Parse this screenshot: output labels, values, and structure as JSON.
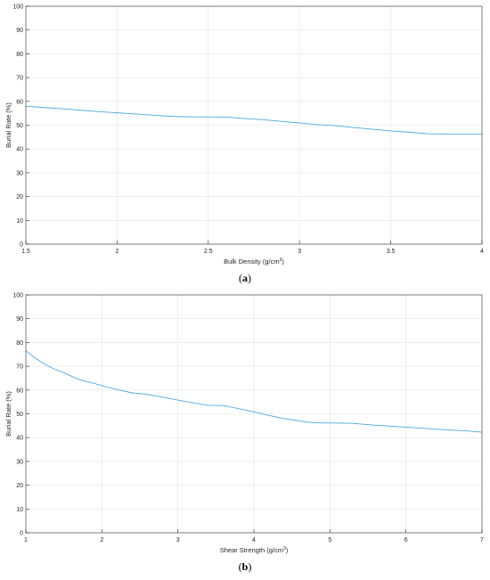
{
  "chart_data": [
    {
      "type": "line",
      "caption": "(a)",
      "caption_letter": "a",
      "title": "",
      "xlabel": "Bulk Density (g/cm",
      "xlabel_sup": "3",
      "xlabel_tail": ")",
      "ylabel": "Burial Rate (%)",
      "xlim": [
        1.5,
        4
      ],
      "ylim": [
        0,
        100
      ],
      "grid": true,
      "xticks": [
        {
          "v": 1.5,
          "label": "1.5"
        },
        {
          "v": 2,
          "label": "2"
        },
        {
          "v": 2.5,
          "label": "2.5"
        },
        {
          "v": 3,
          "label": "3"
        },
        {
          "v": 3.5,
          "label": "3.5"
        },
        {
          "v": 4,
          "label": "4"
        }
      ],
      "yticks": [
        {
          "v": 0,
          "label": "0"
        },
        {
          "v": 10,
          "label": "10"
        },
        {
          "v": 20,
          "label": "20"
        },
        {
          "v": 30,
          "label": "30"
        },
        {
          "v": 40,
          "label": "40"
        },
        {
          "v": 50,
          "label": "50"
        },
        {
          "v": 60,
          "label": "60"
        },
        {
          "v": 70,
          "label": "70"
        },
        {
          "v": 80,
          "label": "80"
        },
        {
          "v": 90,
          "label": "90"
        },
        {
          "v": 100,
          "label": "100"
        }
      ],
      "series": [
        {
          "color": "#4fa8db",
          "x": [
            1.5,
            1.6,
            1.7,
            1.8,
            1.9,
            2.0,
            2.1,
            2.2,
            2.3,
            2.4,
            2.5,
            2.6,
            2.7,
            2.8,
            2.9,
            3.0,
            3.1,
            3.2,
            3.3,
            3.4,
            3.5,
            3.6,
            3.7,
            3.8,
            3.9,
            4.0
          ],
          "y": [
            58.0,
            57.4,
            56.9,
            56.3,
            55.7,
            55.2,
            54.7,
            54.2,
            53.7,
            53.5,
            53.5,
            53.4,
            52.8,
            52.3,
            51.6,
            50.9,
            50.2,
            49.8,
            49.0,
            48.3,
            47.6,
            47.1,
            46.4,
            46.2,
            46.2,
            46.2
          ]
        }
      ]
    },
    {
      "type": "line",
      "caption": "(b)",
      "caption_letter": "b",
      "title": "",
      "xlabel": "Shear Strength (g/cm",
      "xlabel_sup": "3",
      "xlabel_tail": ")",
      "ylabel": "Burial Rate (%)",
      "xlim": [
        1,
        7
      ],
      "ylim": [
        0,
        100
      ],
      "grid": true,
      "xticks": [
        {
          "v": 1,
          "label": "1"
        },
        {
          "v": 2,
          "label": "2"
        },
        {
          "v": 3,
          "label": "3"
        },
        {
          "v": 4,
          "label": "4"
        },
        {
          "v": 5,
          "label": "5"
        },
        {
          "v": 6,
          "label": "6"
        },
        {
          "v": 7,
          "label": "7"
        }
      ],
      "yticks": [
        {
          "v": 0,
          "label": "0"
        },
        {
          "v": 10,
          "label": "10"
        },
        {
          "v": 20,
          "label": "20"
        },
        {
          "v": 30,
          "label": "30"
        },
        {
          "v": 40,
          "label": "40"
        },
        {
          "v": 50,
          "label": "50"
        },
        {
          "v": 60,
          "label": "60"
        },
        {
          "v": 70,
          "label": "70"
        },
        {
          "v": 80,
          "label": "80"
        },
        {
          "v": 90,
          "label": "90"
        },
        {
          "v": 100,
          "label": "100"
        }
      ],
      "series": [
        {
          "color": "#4fa8db",
          "x": [
            1.0,
            1.1,
            1.2,
            1.3,
            1.4,
            1.5,
            1.6,
            1.7,
            1.8,
            1.9,
            2.0,
            2.2,
            2.4,
            2.6,
            2.8,
            3.0,
            3.2,
            3.4,
            3.6,
            3.8,
            4.0,
            4.2,
            4.4,
            4.6,
            4.8,
            5.0,
            5.3,
            5.6,
            6.0,
            6.4,
            6.8,
            7.0
          ],
          "y": [
            76.5,
            74.0,
            71.8,
            70.0,
            68.5,
            67.3,
            65.8,
            64.5,
            63.5,
            62.8,
            61.8,
            60.2,
            58.8,
            58.2,
            57.0,
            55.8,
            54.6,
            53.6,
            53.5,
            52.2,
            50.8,
            49.3,
            48.0,
            47.0,
            46.2,
            46.2,
            46.0,
            45.2,
            44.4,
            43.5,
            42.8,
            42.3
          ]
        }
      ]
    }
  ]
}
